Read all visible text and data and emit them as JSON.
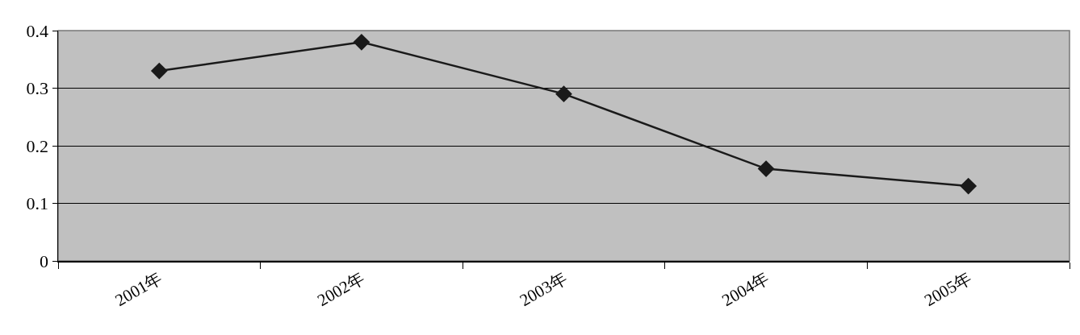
{
  "chart_data": {
    "type": "line",
    "categories": [
      "2001年",
      "2002年",
      "2003年",
      "2004年",
      "2005年"
    ],
    "values": [
      0.33,
      0.38,
      0.29,
      0.16,
      0.13
    ],
    "color": "#1a1a1a",
    "ylim": [
      0,
      0.4
    ],
    "yticks": [
      0,
      0.1,
      0.2,
      0.3,
      0.4
    ],
    "grid": "y",
    "marker": "diamond",
    "line_style": "solid"
  }
}
